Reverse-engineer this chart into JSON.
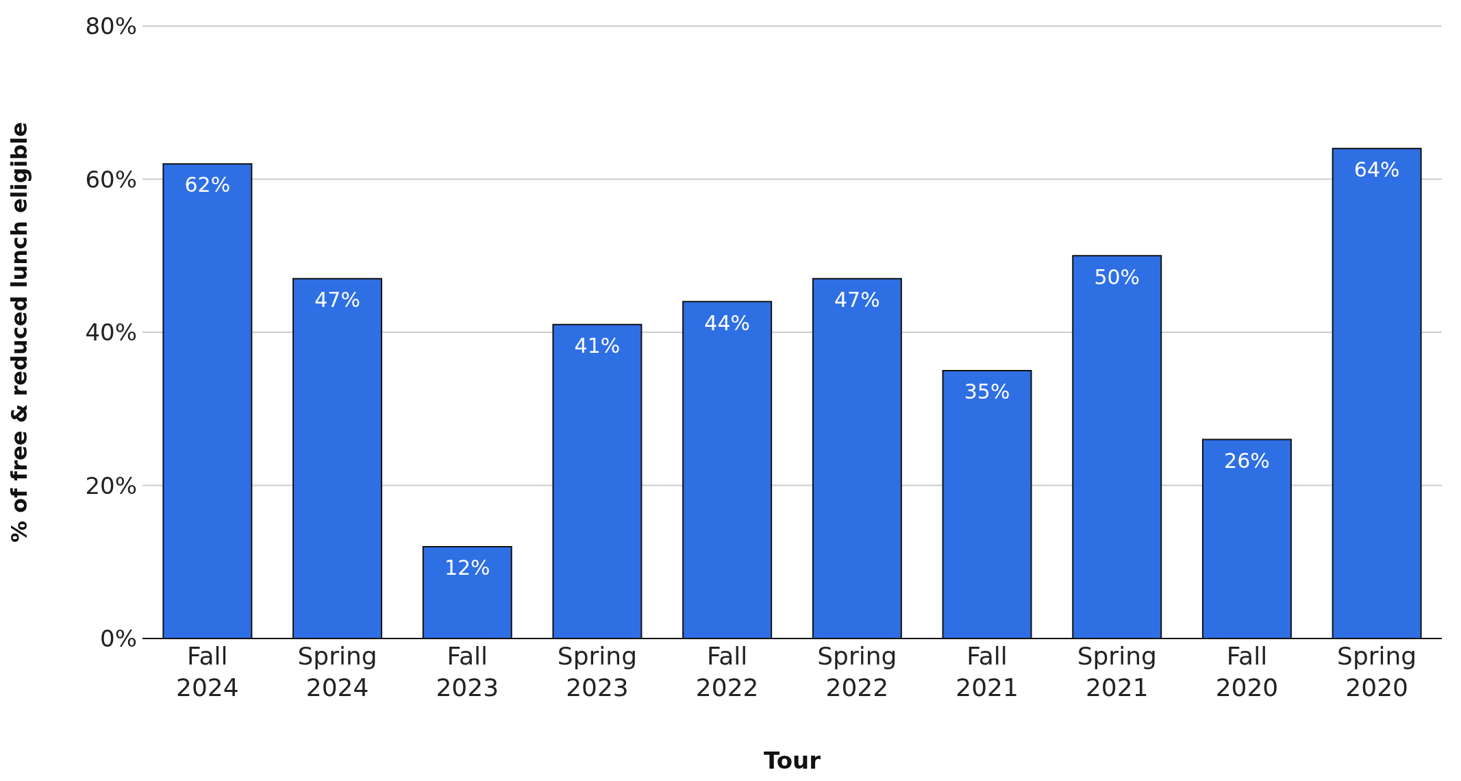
{
  "chart_data": {
    "type": "bar",
    "xlabel": "Tour",
    "ylabel": "% of  free & reduced lunch eligible",
    "categories": [
      "Fall 2024",
      "Spring 2024",
      "Fall 2023",
      "Spring 2023",
      "Fall 2022",
      "Spring 2022",
      "Fall 2021",
      "Spring 2021",
      "Fall 2020",
      "Spring 2020"
    ],
    "values": [
      62,
      47,
      12,
      41,
      44,
      47,
      35,
      50,
      26,
      64
    ],
    "value_labels": [
      "62%",
      "47%",
      "12%",
      "41%",
      "44%",
      "47%",
      "35%",
      "50%",
      "26%",
      "64%"
    ],
    "color": "#2f6fe4",
    "ylim": [
      0,
      80
    ],
    "yticks": [
      {
        "value": 0,
        "label": "0%"
      },
      {
        "value": 20,
        "label": "20%"
      },
      {
        "value": 40,
        "label": "40%"
      },
      {
        "value": 60,
        "label": "60%"
      },
      {
        "value": 80,
        "label": "80%"
      }
    ],
    "grid": "y"
  }
}
